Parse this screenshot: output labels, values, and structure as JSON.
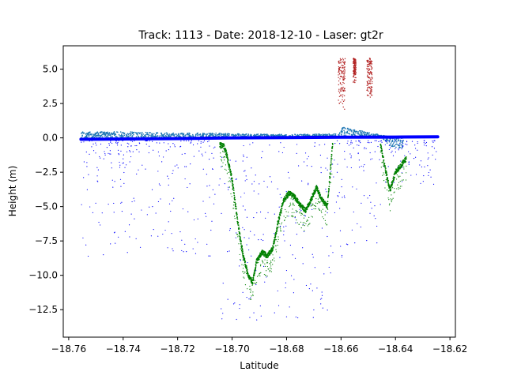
{
  "chart_data": {
    "type": "scatter",
    "title": "Track: 1113 - Date: 2018-12-10 - Laser: gt2r",
    "xlabel": "Latitude",
    "ylabel": "Height (m)",
    "xlim": [
      -18.762,
      -18.618
    ],
    "ylim": [
      -14.5,
      6.7
    ],
    "x_ticks": [
      -18.76,
      -18.74,
      -18.72,
      -18.7,
      -18.68,
      -18.66,
      -18.64,
      -18.62
    ],
    "x_tick_labels": [
      "−18.76",
      "−18.74",
      "−18.72",
      "−18.70",
      "−18.68",
      "−18.66",
      "−18.64",
      "−18.62"
    ],
    "y_ticks": [
      5.0,
      2.5,
      0.0,
      -2.5,
      -5.0,
      -7.5,
      -10.0,
      -12.5
    ],
    "y_tick_labels": [
      "5.0",
      "2.5",
      "0.0",
      "−2.5",
      "−5.0",
      "−7.5",
      "−10.0",
      "−12.5"
    ],
    "grid": false,
    "legend": "none",
    "series": [
      {
        "color": "#1f77b4",
        "kind": "band",
        "x": [
          -18.7555,
          -18.74,
          -18.72,
          -18.706,
          -18.7,
          -18.68,
          -18.661,
          -18.6595,
          -18.645,
          -18.642,
          -18.637
        ],
        "y_low": [
          -0.1,
          -0.1,
          -0.05,
          -0.05,
          -0.05,
          0.0,
          0.0,
          0.2,
          0.0,
          -0.6,
          -0.8
        ],
        "y_high": [
          0.45,
          0.45,
          0.35,
          0.35,
          0.3,
          0.25,
          0.3,
          0.8,
          0.2,
          0.1,
          0.1
        ]
      },
      {
        "color": "#0000ff",
        "kind": "line",
        "x": [
          -18.7555,
          -18.74,
          -18.72,
          -18.7,
          -18.68,
          -18.66,
          -18.64,
          -18.6245
        ],
        "y": [
          -0.1,
          -0.08,
          -0.05,
          0.0,
          0.02,
          0.05,
          0.06,
          0.08
        ]
      },
      {
        "color": "#0000ff",
        "kind": "scatter-noise",
        "x_range": [
          -18.7555,
          -18.625
        ],
        "y_range": [
          -13.5,
          -0.2
        ]
      },
      {
        "color": "#008000",
        "kind": "profile",
        "x": [
          -18.7045,
          -18.703,
          -18.702,
          -18.7,
          -18.698,
          -18.696,
          -18.694,
          -18.6925,
          -18.691,
          -18.689,
          -18.687,
          -18.685,
          -18.683,
          -18.681,
          -18.679,
          -18.677,
          -18.675,
          -18.673,
          -18.671,
          -18.669,
          -18.667,
          -18.665,
          -18.663
        ],
        "y": [
          -0.5,
          -0.6,
          -1.2,
          -3.0,
          -6.0,
          -8.5,
          -10.0,
          -10.5,
          -9.0,
          -8.3,
          -8.6,
          -8.0,
          -6.0,
          -4.5,
          -4.0,
          -4.3,
          -4.9,
          -5.3,
          -4.5,
          -3.6,
          -4.5,
          -5.0,
          -0.2
        ]
      },
      {
        "color": "#008000",
        "kind": "profile",
        "x": [
          -18.6455,
          -18.644,
          -18.642,
          -18.64,
          -18.638,
          -18.636
        ],
        "y": [
          -0.5,
          -2.0,
          -3.8,
          -2.5,
          -2.0,
          -1.5
        ]
      },
      {
        "color": "#b22222",
        "kind": "clusters",
        "clusters": [
          {
            "x": [
              -18.661,
              -18.6585
            ],
            "y": [
              2.0,
              5.8
            ]
          },
          {
            "x": [
              -18.6555,
              -18.6545
            ],
            "y": [
              4.0,
              5.8
            ]
          },
          {
            "x": [
              -18.6505,
              -18.6485
            ],
            "y": [
              2.8,
              5.8
            ]
          }
        ]
      }
    ]
  }
}
